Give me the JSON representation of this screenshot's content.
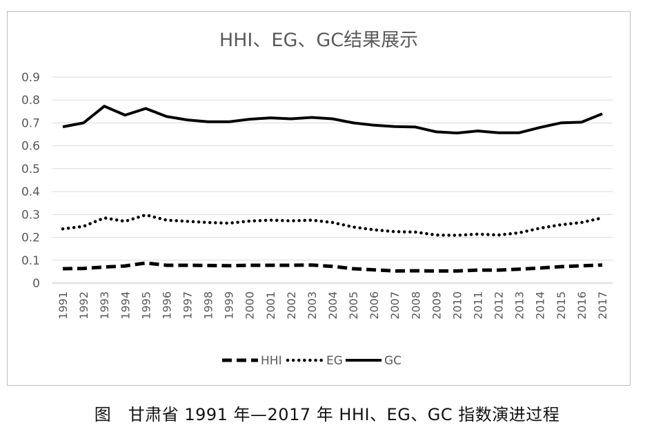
{
  "chart_data": {
    "type": "line",
    "title": "HHI、EG、GC结果展示",
    "xlabel": "",
    "ylabel": "",
    "categories": [
      "1991",
      "1992",
      "1993",
      "1994",
      "1995",
      "1996",
      "1997",
      "1998",
      "1999",
      "2000",
      "2001",
      "2002",
      "2003",
      "2004",
      "2005",
      "2006",
      "2007",
      "2008",
      "2009",
      "2010",
      "2011",
      "2012",
      "2013",
      "2014",
      "2015",
      "2016",
      "2017"
    ],
    "ylim": [
      0,
      0.9
    ],
    "yticks": [
      "0",
      "0.1",
      "0.2",
      "0.3",
      "0.4",
      "0.5",
      "0.6",
      "0.7",
      "0.8",
      "0.9"
    ],
    "grid": true,
    "legend_position": "bottom",
    "series": [
      {
        "name": "HHI",
        "style": "dashed",
        "values": [
          0.063,
          0.064,
          0.07,
          0.075,
          0.088,
          0.078,
          0.078,
          0.077,
          0.076,
          0.078,
          0.078,
          0.078,
          0.079,
          0.073,
          0.063,
          0.058,
          0.053,
          0.054,
          0.053,
          0.053,
          0.057,
          0.057,
          0.061,
          0.066,
          0.072,
          0.076,
          0.079
        ]
      },
      {
        "name": "EG",
        "style": "dotted",
        "values": [
          0.237,
          0.248,
          0.285,
          0.27,
          0.298,
          0.275,
          0.27,
          0.265,
          0.262,
          0.271,
          0.275,
          0.272,
          0.275,
          0.265,
          0.245,
          0.233,
          0.225,
          0.223,
          0.21,
          0.209,
          0.214,
          0.21,
          0.22,
          0.24,
          0.255,
          0.265,
          0.285
        ]
      },
      {
        "name": "GC",
        "style": "solid",
        "values": [
          0.683,
          0.7,
          0.773,
          0.734,
          0.763,
          0.728,
          0.713,
          0.705,
          0.705,
          0.716,
          0.722,
          0.718,
          0.724,
          0.718,
          0.7,
          0.69,
          0.684,
          0.682,
          0.661,
          0.656,
          0.665,
          0.657,
          0.657,
          0.68,
          0.7,
          0.703,
          0.74
        ]
      }
    ]
  },
  "caption": "图　甘肃省 1991 年—2017 年 HHI、EG、GC 指数演进过程"
}
